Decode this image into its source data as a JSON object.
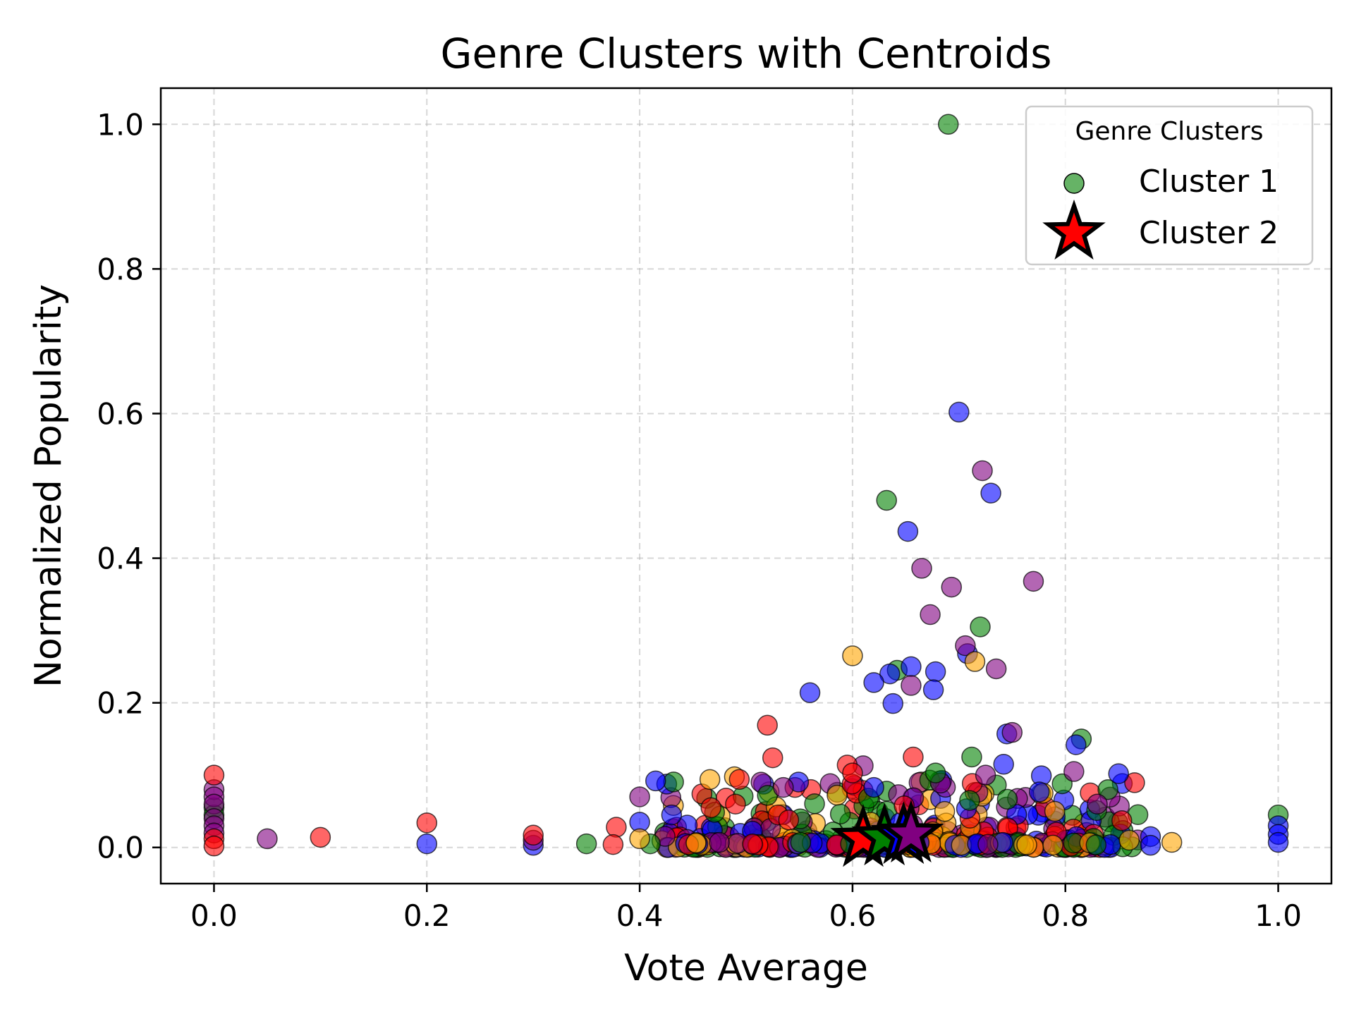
{
  "chart_data": {
    "type": "scatter",
    "title": "Genre Clusters with Centroids",
    "xlabel": "Vote Average",
    "ylabel": "Normalized Popularity",
    "xlim": [
      -0.05,
      1.05
    ],
    "ylim": [
      -0.05,
      1.05
    ],
    "xticks": [
      0.0,
      0.2,
      0.4,
      0.6,
      0.8,
      1.0
    ],
    "yticks": [
      0.0,
      0.2,
      0.4,
      0.6,
      0.8,
      1.0
    ],
    "xtick_labels": [
      "0.0",
      "0.2",
      "0.4",
      "0.6",
      "0.8",
      "1.0"
    ],
    "ytick_labels": [
      "0.0",
      "0.2",
      "0.4",
      "0.6",
      "0.8",
      "1.0"
    ],
    "grid": true,
    "legend": {
      "title": "Genre Clusters",
      "placement": "upper-right",
      "entries": [
        {
          "label": "Cluster 1",
          "marker": "circle",
          "color": "#008000"
        },
        {
          "label": "Cluster 2",
          "marker": "star",
          "color": "#ff0000"
        }
      ]
    },
    "colors": {
      "green": "#008000",
      "red": "#ff0000",
      "blue": "#0000ff",
      "purple": "#800080",
      "orange": "#ffa500"
    },
    "outliers": {
      "green": [
        [
          0.69,
          1.0
        ],
        [
          0.632,
          0.48
        ],
        [
          0.72,
          0.305
        ],
        [
          0.642,
          0.245
        ],
        [
          0.815,
          0.15
        ],
        [
          0.712,
          0.125
        ],
        [
          0.0,
          0.055
        ],
        [
          0.0,
          0.045
        ],
        [
          1.0,
          0.045
        ],
        [
          0.52,
          0.072
        ],
        [
          0.678,
          0.103
        ],
        [
          0.797,
          0.088
        ],
        [
          0.84,
          0.08
        ],
        [
          0.35,
          0.005
        ],
        [
          0.41,
          0.005
        ],
        [
          0.71,
          0.065
        ],
        [
          0.615,
          0.068
        ]
      ],
      "blue": [
        [
          0.7,
          0.602
        ],
        [
          0.73,
          0.49
        ],
        [
          0.652,
          0.437
        ],
        [
          0.708,
          0.268
        ],
        [
          0.655,
          0.25
        ],
        [
          0.678,
          0.243
        ],
        [
          0.635,
          0.24
        ],
        [
          0.62,
          0.228
        ],
        [
          0.676,
          0.218
        ],
        [
          0.56,
          0.214
        ],
        [
          0.638,
          0.199
        ],
        [
          0.745,
          0.157
        ],
        [
          0.81,
          0.142
        ],
        [
          0.742,
          0.115
        ],
        [
          0.85,
          0.102
        ],
        [
          0.415,
          0.092
        ],
        [
          0.62,
          0.083
        ],
        [
          0.43,
          0.045
        ],
        [
          0.4,
          0.035
        ],
        [
          0.88,
          0.015
        ],
        [
          0.2,
          0.005
        ],
        [
          0.3,
          0.003
        ],
        [
          1.0,
          0.03
        ],
        [
          1.0,
          0.018
        ],
        [
          1.0,
          0.007
        ],
        [
          0.88,
          0.003
        ]
      ],
      "purple": [
        [
          0.722,
          0.521
        ],
        [
          0.665,
          0.386
        ],
        [
          0.693,
          0.36
        ],
        [
          0.77,
          0.368
        ],
        [
          0.673,
          0.322
        ],
        [
          0.706,
          0.279
        ],
        [
          0.735,
          0.247
        ],
        [
          0.655,
          0.224
        ],
        [
          0.75,
          0.159
        ],
        [
          0.61,
          0.113
        ],
        [
          0.535,
          0.083
        ],
        [
          0.808,
          0.105
        ],
        [
          0.4,
          0.07
        ],
        [
          0.05,
          0.012
        ],
        [
          0.0,
          0.08
        ],
        [
          0.0,
          0.07
        ],
        [
          0.0,
          0.06
        ],
        [
          0.0,
          0.04
        ],
        [
          0.0,
          0.03
        ],
        [
          0.0,
          0.02
        ],
        [
          0.3,
          0.01
        ],
        [
          0.725,
          0.1
        ],
        [
          0.83,
          0.06
        ]
      ],
      "red": [
        [
          0.52,
          0.169
        ],
        [
          0.525,
          0.124
        ],
        [
          0.657,
          0.125
        ],
        [
          0.595,
          0.114
        ],
        [
          0.6,
          0.103
        ],
        [
          0.0,
          0.1
        ],
        [
          0.467,
          0.055
        ],
        [
          0.49,
          0.06
        ],
        [
          0.2,
          0.034
        ],
        [
          0.1,
          0.014
        ],
        [
          0.378,
          0.028
        ],
        [
          0.375,
          0.004
        ],
        [
          0.3,
          0.017
        ],
        [
          0.0,
          0.012
        ],
        [
          0.0,
          0.002
        ],
        [
          0.53,
          0.045
        ],
        [
          0.54,
          0.038
        ]
      ],
      "orange": [
        [
          0.6,
          0.265
        ],
        [
          0.715,
          0.257
        ],
        [
          0.9,
          0.007
        ],
        [
          0.4,
          0.012
        ],
        [
          0.79,
          0.05
        ],
        [
          0.86,
          0.01
        ]
      ]
    },
    "cluster_band": {
      "x_range": [
        0.42,
        0.87
      ],
      "y_range": [
        0.0,
        0.1
      ],
      "order": [
        "orange",
        "green",
        "red",
        "purple",
        "blue"
      ]
    },
    "centroids": [
      {
        "x": 0.61,
        "y": 0.012,
        "color": "#ff0000"
      },
      {
        "x": 0.63,
        "y": 0.014,
        "color": "#008000"
      },
      {
        "x": 0.648,
        "y": 0.016,
        "color": "#0000ff"
      },
      {
        "x": 0.655,
        "y": 0.018,
        "color": "#800080"
      }
    ]
  }
}
